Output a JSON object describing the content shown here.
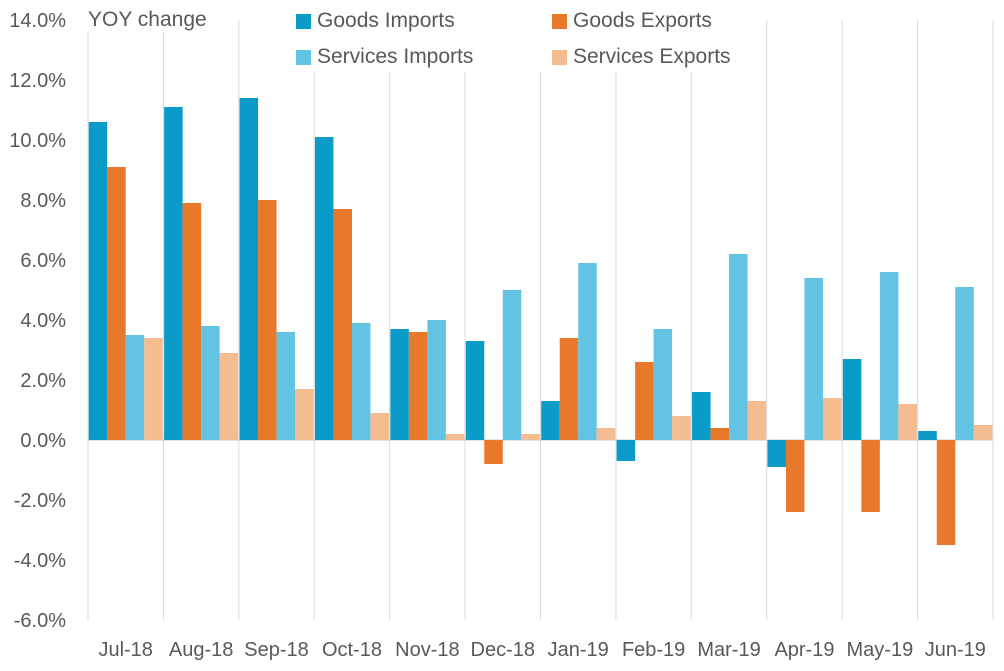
{
  "chart_data": {
    "type": "bar",
    "title": "",
    "ylabel": "YOY change",
    "xlabel": "",
    "ylim": [
      -6,
      14
    ],
    "ytick_step": 2,
    "yticks": [
      "14.0%",
      "12.0%",
      "10.0%",
      "8.0%",
      "6.0%",
      "4.0%",
      "2.0%",
      "0.0%",
      "-2.0%",
      "-4.0%",
      "-6.0%"
    ],
    "categories": [
      "Jul-18",
      "Aug-18",
      "Sep-18",
      "Oct-18",
      "Nov-18",
      "Dec-18",
      "Jan-19",
      "Feb-19",
      "Mar-19",
      "Apr-19",
      "May-19",
      "Jun-19"
    ],
    "series": [
      {
        "name": "Goods Imports",
        "color": "#0a9bc8",
        "values": [
          10.6,
          11.1,
          11.4,
          10.1,
          3.7,
          3.3,
          1.3,
          -0.7,
          1.6,
          -0.9,
          2.7,
          0.3
        ]
      },
      {
        "name": "Goods Exports",
        "color": "#e8792a",
        "values": [
          9.1,
          7.9,
          8.0,
          7.7,
          3.6,
          -0.8,
          3.4,
          2.6,
          0.4,
          -2.4,
          -2.4,
          -3.5
        ]
      },
      {
        "name": "Services Imports",
        "color": "#62c3e2",
        "values": [
          3.5,
          3.8,
          3.6,
          3.9,
          4.0,
          5.0,
          5.9,
          3.7,
          6.2,
          5.4,
          5.6,
          5.1
        ]
      },
      {
        "name": "Services Exports",
        "color": "#f4bc91",
        "values": [
          3.4,
          2.9,
          1.7,
          0.9,
          0.2,
          0.2,
          0.4,
          0.8,
          1.3,
          1.4,
          1.2,
          0.5
        ]
      }
    ],
    "grid": "vertical category separators",
    "legend_position": "top"
  }
}
